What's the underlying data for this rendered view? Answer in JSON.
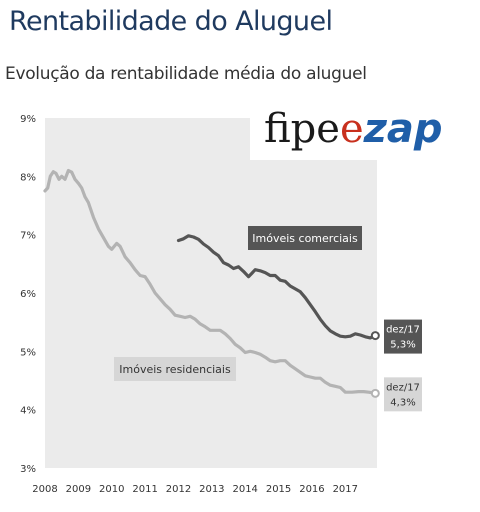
{
  "header": {
    "title": "Rentabilidade do Aluguel",
    "subtitle": "Evolução da rentabilidade média do aluguel"
  },
  "logo": {
    "part1": "fipe",
    "part2": "e",
    "part3": "zap"
  },
  "colors": {
    "plot_background": "#ebebeb",
    "comercial_line": "#555555",
    "residencial_line": "#b3b3b3",
    "comercial_box": "#555555",
    "residencial_box": "#d6d6d6",
    "logo_red": "#c8301e",
    "logo_blue": "#1f5ea8"
  },
  "chart_data": {
    "type": "line",
    "title": "Evolução da rentabilidade média do aluguel",
    "xlabel": "",
    "ylabel": "",
    "xlim": [
      2008.0,
      2017.95
    ],
    "ylim": [
      3,
      9
    ],
    "yticks": [
      "3%",
      "4%",
      "5%",
      "6%",
      "7%",
      "8%",
      "9%"
    ],
    "xticks": [
      "2008",
      "2009",
      "2010",
      "2011",
      "2012",
      "2013",
      "2014",
      "2015",
      "2016",
      "2017"
    ],
    "grid": false,
    "series": [
      {
        "name": "Imóveis comerciais",
        "end_label": [
          "dez/17",
          "5,3%"
        ],
        "points": [
          [
            2012.0,
            6.9
          ],
          [
            2012.15,
            6.93
          ],
          [
            2012.3,
            6.98
          ],
          [
            2012.45,
            6.96
          ],
          [
            2012.6,
            6.92
          ],
          [
            2012.75,
            6.84
          ],
          [
            2012.9,
            6.78
          ],
          [
            2013.05,
            6.7
          ],
          [
            2013.2,
            6.64
          ],
          [
            2013.35,
            6.52
          ],
          [
            2013.5,
            6.48
          ],
          [
            2013.65,
            6.42
          ],
          [
            2013.8,
            6.45
          ],
          [
            2013.95,
            6.37
          ],
          [
            2014.1,
            6.28
          ],
          [
            2014.2,
            6.34
          ],
          [
            2014.3,
            6.4
          ],
          [
            2014.45,
            6.38
          ],
          [
            2014.6,
            6.35
          ],
          [
            2014.75,
            6.3
          ],
          [
            2014.9,
            6.3
          ],
          [
            2015.05,
            6.22
          ],
          [
            2015.2,
            6.2
          ],
          [
            2015.35,
            6.12
          ],
          [
            2015.5,
            6.07
          ],
          [
            2015.65,
            6.02
          ],
          [
            2015.8,
            5.92
          ],
          [
            2015.95,
            5.8
          ],
          [
            2016.1,
            5.68
          ],
          [
            2016.25,
            5.55
          ],
          [
            2016.4,
            5.44
          ],
          [
            2016.55,
            5.35
          ],
          [
            2016.7,
            5.3
          ],
          [
            2016.85,
            5.26
          ],
          [
            2017.0,
            5.25
          ],
          [
            2017.15,
            5.26
          ],
          [
            2017.3,
            5.3
          ],
          [
            2017.45,
            5.28
          ],
          [
            2017.6,
            5.25
          ],
          [
            2017.75,
            5.23
          ],
          [
            2017.9,
            5.27
          ]
        ]
      },
      {
        "name": "Imóveis residenciais",
        "end_label": [
          "dez/17",
          "4,3%"
        ],
        "points": [
          [
            2008.0,
            7.75
          ],
          [
            2008.08,
            7.8
          ],
          [
            2008.16,
            8.0
          ],
          [
            2008.25,
            8.08
          ],
          [
            2008.33,
            8.05
          ],
          [
            2008.42,
            7.95
          ],
          [
            2008.5,
            8.0
          ],
          [
            2008.6,
            7.95
          ],
          [
            2008.7,
            8.1
          ],
          [
            2008.8,
            8.07
          ],
          [
            2008.9,
            7.95
          ],
          [
            2009.0,
            7.88
          ],
          [
            2009.1,
            7.8
          ],
          [
            2009.2,
            7.65
          ],
          [
            2009.3,
            7.55
          ],
          [
            2009.45,
            7.3
          ],
          [
            2009.6,
            7.1
          ],
          [
            2009.75,
            6.95
          ],
          [
            2009.9,
            6.8
          ],
          [
            2010.0,
            6.75
          ],
          [
            2010.15,
            6.85
          ],
          [
            2010.25,
            6.8
          ],
          [
            2010.4,
            6.62
          ],
          [
            2010.55,
            6.52
          ],
          [
            2010.7,
            6.4
          ],
          [
            2010.85,
            6.3
          ],
          [
            2011.0,
            6.28
          ],
          [
            2011.15,
            6.15
          ],
          [
            2011.3,
            6.0
          ],
          [
            2011.45,
            5.9
          ],
          [
            2011.6,
            5.8
          ],
          [
            2011.75,
            5.72
          ],
          [
            2011.9,
            5.62
          ],
          [
            2012.05,
            5.6
          ],
          [
            2012.2,
            5.58
          ],
          [
            2012.35,
            5.6
          ],
          [
            2012.5,
            5.55
          ],
          [
            2012.65,
            5.47
          ],
          [
            2012.8,
            5.42
          ],
          [
            2012.95,
            5.36
          ],
          [
            2013.1,
            5.36
          ],
          [
            2013.25,
            5.36
          ],
          [
            2013.4,
            5.3
          ],
          [
            2013.55,
            5.22
          ],
          [
            2013.7,
            5.12
          ],
          [
            2013.85,
            5.06
          ],
          [
            2014.0,
            4.98
          ],
          [
            2014.15,
            5.0
          ],
          [
            2014.3,
            4.98
          ],
          [
            2014.45,
            4.95
          ],
          [
            2014.6,
            4.9
          ],
          [
            2014.75,
            4.84
          ],
          [
            2014.9,
            4.82
          ],
          [
            2015.05,
            4.84
          ],
          [
            2015.2,
            4.84
          ],
          [
            2015.35,
            4.76
          ],
          [
            2015.5,
            4.7
          ],
          [
            2015.65,
            4.64
          ],
          [
            2015.8,
            4.58
          ],
          [
            2015.95,
            4.56
          ],
          [
            2016.1,
            4.54
          ],
          [
            2016.25,
            4.54
          ],
          [
            2016.4,
            4.47
          ],
          [
            2016.55,
            4.42
          ],
          [
            2016.7,
            4.4
          ],
          [
            2016.85,
            4.38
          ],
          [
            2017.0,
            4.3
          ],
          [
            2017.2,
            4.3
          ],
          [
            2017.4,
            4.31
          ],
          [
            2017.55,
            4.31
          ],
          [
            2017.7,
            4.3
          ],
          [
            2017.9,
            4.28
          ]
        ]
      }
    ]
  }
}
